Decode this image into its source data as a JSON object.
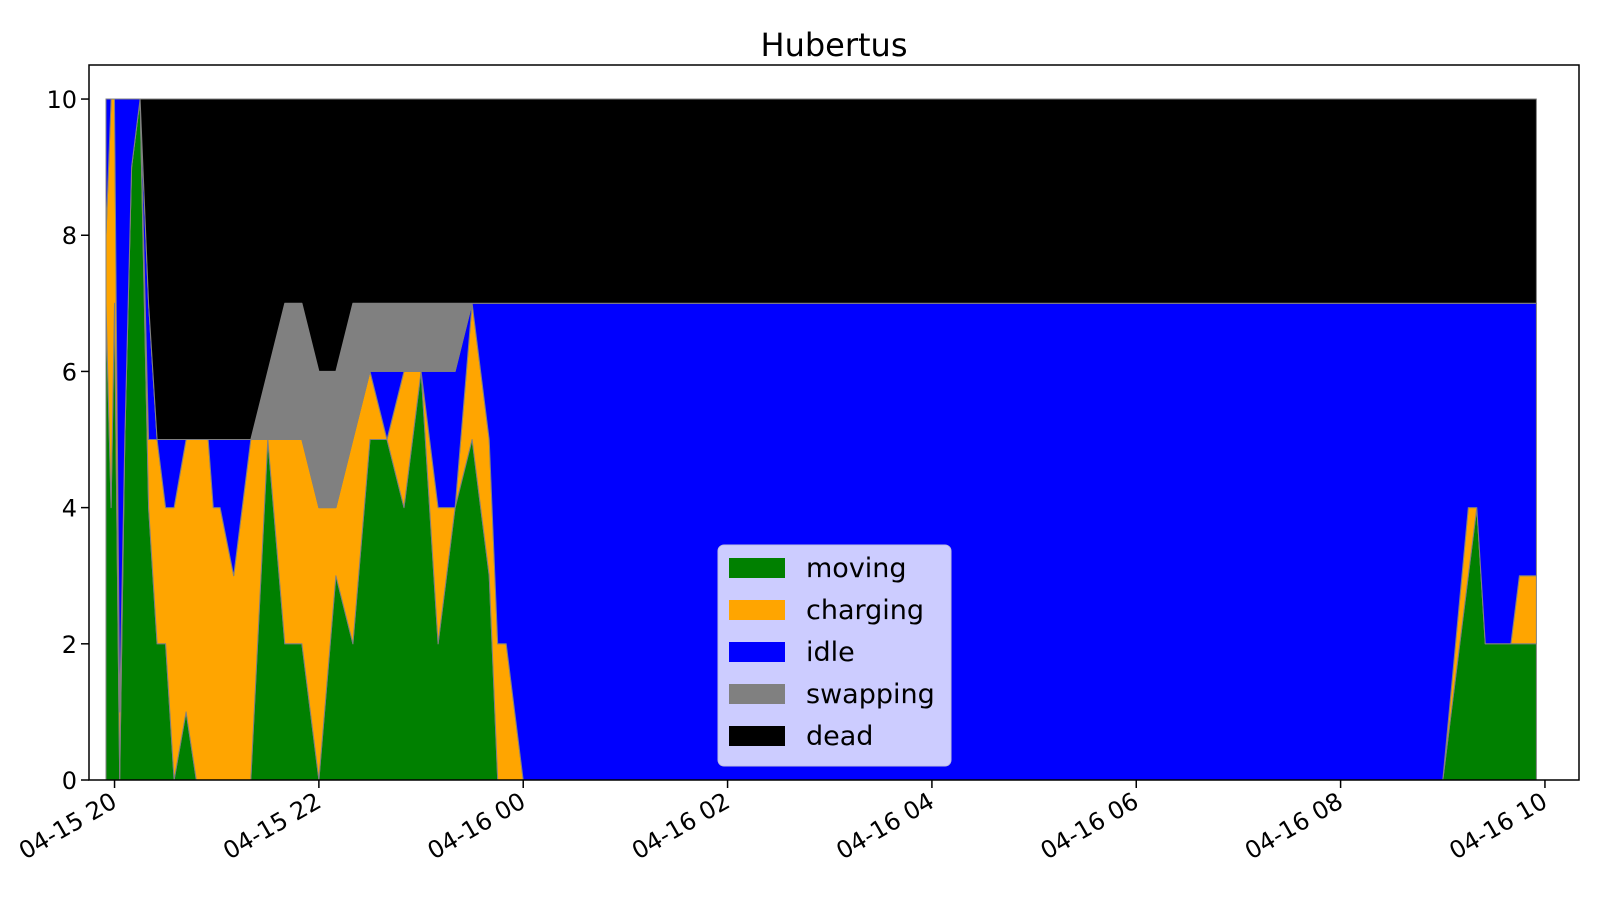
{
  "chart_data": {
    "type": "area",
    "stacked": true,
    "title": "Hubertus",
    "xlabel": "",
    "ylabel": "",
    "x_axis_kind": "datetime",
    "xlim": [
      "2020-04-15 19:45",
      "2020-04-16 10:20"
    ],
    "ylim": [
      0,
      10.5
    ],
    "x_ticks": [
      "2020-04-15 20:00",
      "2020-04-15 22:00",
      "2020-04-16 00:00",
      "2020-04-16 02:00",
      "2020-04-16 04:00",
      "2020-04-16 06:00",
      "2020-04-16 08:00",
      "2020-04-16 10:00"
    ],
    "x_tick_labels": [
      "04-15 20",
      "04-15 22",
      "04-16 00",
      "04-16 02",
      "04-16 04",
      "04-16 06",
      "04-16 08",
      "04-16 10"
    ],
    "y_ticks": [
      0,
      2,
      4,
      6,
      8,
      10
    ],
    "y_tick_labels": [
      "0",
      "2",
      "4",
      "6",
      "8",
      "10"
    ],
    "grid": false,
    "legend_position": "lower-center",
    "x": [
      "2020-04-15 19:55",
      "2020-04-15 19:58",
      "2020-04-15 20:00",
      "2020-04-15 20:03",
      "2020-04-15 20:06",
      "2020-04-15 20:10",
      "2020-04-15 20:15",
      "2020-04-15 20:20",
      "2020-04-15 20:25",
      "2020-04-15 20:30",
      "2020-04-15 20:35",
      "2020-04-15 20:42",
      "2020-04-15 20:48",
      "2020-04-15 20:52",
      "2020-04-15 20:55",
      "2020-04-15 20:58",
      "2020-04-15 21:02",
      "2020-04-15 21:10",
      "2020-04-15 21:20",
      "2020-04-15 21:30",
      "2020-04-15 21:40",
      "2020-04-15 21:50",
      "2020-04-15 22:00",
      "2020-04-15 22:10",
      "2020-04-15 22:20",
      "2020-04-15 22:30",
      "2020-04-15 22:40",
      "2020-04-15 22:50",
      "2020-04-15 23:00",
      "2020-04-15 23:10",
      "2020-04-15 23:20",
      "2020-04-15 23:30",
      "2020-04-15 23:40",
      "2020-04-15 23:45",
      "2020-04-15 23:50",
      "2020-04-16 00:00",
      "2020-04-16 00:10",
      "2020-04-16 00:20",
      "2020-04-16 04:00",
      "2020-04-16 09:00",
      "2020-04-16 09:15",
      "2020-04-16 09:20",
      "2020-04-16 09:25",
      "2020-04-16 09:30",
      "2020-04-16 09:40",
      "2020-04-16 09:45",
      "2020-04-16 09:55"
    ],
    "series": [
      {
        "name": "moving",
        "color": "#008000",
        "values": [
          7,
          4,
          7,
          0,
          5,
          9,
          10,
          4,
          2,
          2,
          0,
          1,
          0,
          0,
          0,
          0,
          0,
          0,
          0,
          5,
          2,
          2,
          0,
          3,
          2,
          5,
          5,
          4,
          6,
          2,
          4,
          5,
          3,
          0,
          0,
          0,
          0,
          0,
          0,
          0,
          3,
          4,
          2,
          2,
          2,
          2,
          2
        ]
      },
      {
        "name": "charging",
        "color": "#ffa500",
        "values": [
          1,
          6,
          3,
          1,
          0,
          0,
          0,
          1,
          3,
          2,
          4,
          4,
          5,
          5,
          5,
          4,
          4,
          3,
          5,
          0,
          3,
          3,
          4,
          1,
          3,
          1,
          0,
          2,
          0,
          2,
          0,
          2,
          2,
          2,
          2,
          0,
          0,
          0,
          0,
          0,
          1,
          0,
          0,
          0,
          0,
          1,
          1
        ]
      },
      {
        "name": "idle",
        "color": "#0000ff",
        "values": [
          2,
          0,
          0,
          9,
          5,
          1,
          0,
          2,
          0,
          1,
          1,
          0,
          0,
          0,
          0,
          1,
          1,
          2,
          0,
          0,
          0,
          0,
          0,
          0,
          0,
          0,
          1,
          0,
          0,
          2,
          2,
          0,
          2,
          5,
          5,
          7,
          7,
          7,
          7,
          7,
          3,
          3,
          5,
          5,
          5,
          4,
          4
        ]
      },
      {
        "name": "swapping",
        "color": "#808080",
        "values": [
          0,
          0,
          0,
          0,
          0,
          0,
          0,
          0,
          0,
          0,
          0,
          0,
          0,
          0,
          0,
          0,
          0,
          0,
          0,
          1,
          2,
          2,
          2,
          2,
          2,
          1,
          1,
          1,
          1,
          1,
          1,
          0,
          0,
          0,
          0,
          0,
          0,
          0,
          0,
          0,
          0,
          0,
          0,
          0,
          0,
          0,
          0
        ]
      },
      {
        "name": "dead",
        "color": "#000000",
        "values": [
          0,
          0,
          0,
          0,
          0,
          0,
          0,
          3,
          5,
          5,
          5,
          5,
          5,
          5,
          5,
          5,
          5,
          5,
          5,
          4,
          3,
          3,
          4,
          4,
          3,
          3,
          3,
          3,
          3,
          3,
          3,
          3,
          3,
          3,
          3,
          3,
          3,
          3,
          3,
          3,
          3,
          3,
          3,
          3,
          3,
          3,
          3
        ]
      }
    ]
  }
}
